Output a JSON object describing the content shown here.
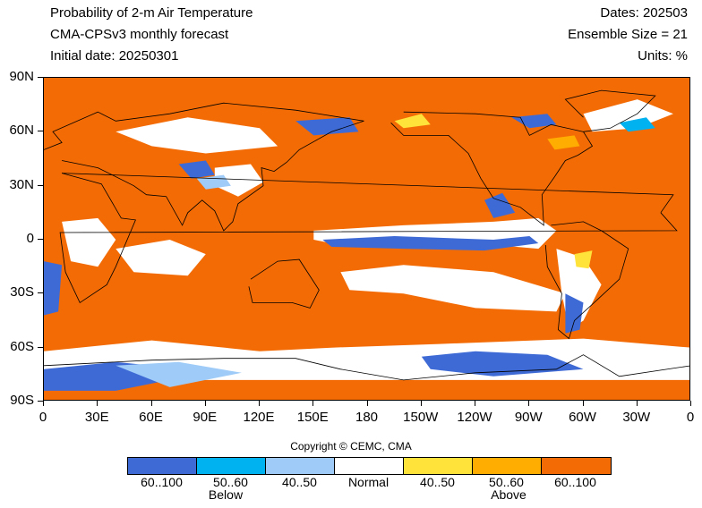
{
  "header": {
    "title": "Probability of 2-m Air Temperature",
    "model": "CMA-CPSv3 monthly forecast",
    "initial_date": "Initial date: 20250301",
    "dates": "Dates: 202503",
    "ensemble": "Ensemble Size = 21",
    "units": "Units: %"
  },
  "map": {
    "lat_labels": [
      "90N",
      "60N",
      "30N",
      "0",
      "30S",
      "60S",
      "90S"
    ],
    "lon_labels": [
      "0",
      "30E",
      "60E",
      "90E",
      "120E",
      "150E",
      "180",
      "150W",
      "120W",
      "90W",
      "60W",
      "30W",
      "0"
    ],
    "colors": {
      "above_60_100": "#f36b05",
      "above_50_60": "#ffad00",
      "above_40_50": "#ffe23a",
      "normal": "#ffffff",
      "below_40_50": "#9ecbf7",
      "below_50_60": "#00b2f0",
      "below_60_100": "#3e6ad6",
      "coastline": "#000000"
    }
  },
  "copyright": "Copyright © CEMC, CMA",
  "legend": {
    "items": [
      {
        "label": "60..100",
        "color": "#3e6ad6"
      },
      {
        "label": "50..60",
        "color": "#00b2f0"
      },
      {
        "label": "40..50",
        "color": "#9ecbf7"
      },
      {
        "label": "Normal",
        "color": "#ffffff"
      },
      {
        "label": "40..50",
        "color": "#ffe23a"
      },
      {
        "label": "50..60",
        "color": "#ffad00"
      },
      {
        "label": "60..100",
        "color": "#f36b05"
      }
    ],
    "below_label": "Below",
    "above_label": "Above"
  }
}
